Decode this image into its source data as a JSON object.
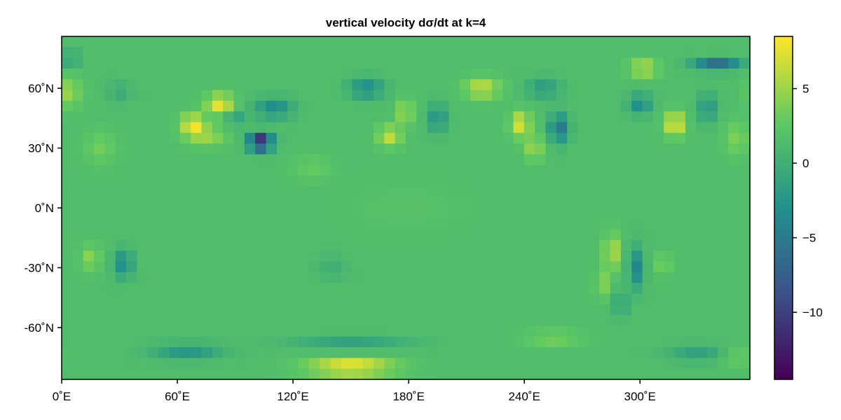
{
  "chart_data": {
    "type": "heatmap",
    "title": "vertical velocity dσ/dt at k=4",
    "xlabel": "",
    "ylabel": "",
    "x_range": [
      0,
      357
    ],
    "y_range": [
      -86,
      86
    ],
    "x_ticks": [
      {
        "value": 0,
        "label": "0˚E"
      },
      {
        "value": 60,
        "label": "60˚E"
      },
      {
        "value": 120,
        "label": "120˚E"
      },
      {
        "value": 180,
        "label": "180˚E"
      },
      {
        "value": 240,
        "label": "240˚E"
      },
      {
        "value": 300,
        "label": "300˚E"
      }
    ],
    "y_ticks": [
      {
        "value": 60,
        "label": "60˚N"
      },
      {
        "value": 30,
        "label": "30˚N"
      },
      {
        "value": 0,
        "label": "0˚N"
      },
      {
        "value": -30,
        "label": "-30˚N"
      },
      {
        "value": -60,
        "label": "-60˚N"
      }
    ],
    "colormap": "viridis",
    "colormap_stops": [
      "#440154",
      "#3b528b",
      "#21918c",
      "#5ec962",
      "#fde725"
    ],
    "colorbar": {
      "range": [
        -14.5,
        8.5
      ],
      "ticks": [
        {
          "value": 5,
          "label": "5"
        },
        {
          "value": 0,
          "label": "0"
        },
        {
          "value": -5,
          "label": "−5"
        },
        {
          "value": -10,
          "label": "−10"
        }
      ]
    },
    "grid": {
      "nlon": 64,
      "nlat": 32,
      "background_value": 1.5
    },
    "features": [
      {
        "lon": 82,
        "lat": 52,
        "wlon": 7,
        "wlat": 5,
        "amp": 6.5
      },
      {
        "lon": 68,
        "lat": 42,
        "wlon": 6,
        "wlat": 5,
        "amp": 6.5
      },
      {
        "lon": 75,
        "lat": 36,
        "wlon": 10,
        "wlat": 5,
        "amp": 3.5
      },
      {
        "lon": 103,
        "lat": 33,
        "wlon": 6,
        "wlat": 4,
        "amp": -15.5
      },
      {
        "lon": 110,
        "lat": 50,
        "wlon": 10,
        "wlat": 5,
        "amp": -5
      },
      {
        "lon": 90,
        "lat": 45,
        "wlon": 5,
        "wlat": 4,
        "amp": -3
      },
      {
        "lon": 170,
        "lat": 36,
        "wlon": 6,
        "wlat": 5,
        "amp": 5
      },
      {
        "lon": 178,
        "lat": 48,
        "wlon": 4,
        "wlat": 6,
        "amp": 4
      },
      {
        "lon": 158,
        "lat": 60,
        "wlon": 9,
        "wlat": 5,
        "amp": -5
      },
      {
        "lon": 195,
        "lat": 45,
        "wlon": 5,
        "wlat": 7,
        "amp": -4.5
      },
      {
        "lon": 218,
        "lat": 60,
        "wlon": 9,
        "wlat": 5,
        "amp": 5
      },
      {
        "lon": 238,
        "lat": 42,
        "wlon": 5,
        "wlat": 6,
        "amp": 6
      },
      {
        "lon": 245,
        "lat": 30,
        "wlon": 5,
        "wlat": 6,
        "amp": 3.5
      },
      {
        "lon": 258,
        "lat": 40,
        "wlon": 5,
        "wlat": 7,
        "amp": -7
      },
      {
        "lon": 250,
        "lat": 60,
        "wlon": 9,
        "wlat": 5,
        "amp": -3.5
      },
      {
        "lon": 302,
        "lat": 70,
        "wlon": 7,
        "wlat": 4,
        "amp": 5
      },
      {
        "lon": 318,
        "lat": 42,
        "wlon": 5,
        "wlat": 6,
        "amp": 6.5
      },
      {
        "lon": 300,
        "lat": 52,
        "wlon": 6,
        "wlat": 5,
        "amp": -5
      },
      {
        "lon": 340,
        "lat": 72,
        "wlon": 12,
        "wlat": 3,
        "amp": -8
      },
      {
        "lon": 335,
        "lat": 50,
        "wlon": 5,
        "wlat": 7,
        "amp": -4
      },
      {
        "lon": 350,
        "lat": 35,
        "wlon": 6,
        "wlat": 8,
        "amp": 2.5
      },
      {
        "lon": 3,
        "lat": 58,
        "wlon": 7,
        "wlat": 7,
        "amp": 3.5
      },
      {
        "lon": 5,
        "lat": 75,
        "wlon": 5,
        "wlat": 3,
        "amp": -4
      },
      {
        "lon": 30,
        "lat": 58,
        "wlon": 6,
        "wlat": 5,
        "amp": -2
      },
      {
        "lon": 285,
        "lat": -22,
        "wlon": 3,
        "wlat": 9,
        "amp": 6.5
      },
      {
        "lon": 280,
        "lat": -38,
        "wlon": 3,
        "wlat": 7,
        "amp": 3.5
      },
      {
        "lon": 298,
        "lat": -30,
        "wlon": 4,
        "wlat": 10,
        "amp": -5.5
      },
      {
        "lon": 290,
        "lat": -48,
        "wlon": 4,
        "wlat": 6,
        "amp": -3
      },
      {
        "lon": 312,
        "lat": -28,
        "wlon": 4,
        "wlat": 5,
        "amp": 2.5
      },
      {
        "lon": 32,
        "lat": -28,
        "wlon": 5,
        "wlat": 7,
        "amp": -5
      },
      {
        "lon": 15,
        "lat": -25,
        "wlon": 5,
        "wlat": 6,
        "amp": 3
      },
      {
        "lon": 150,
        "lat": -80,
        "wlon": 22,
        "wlat": 4,
        "amp": 7.5
      },
      {
        "lon": 65,
        "lat": -72,
        "wlon": 18,
        "wlat": 4,
        "amp": -4
      },
      {
        "lon": 150,
        "lat": -68,
        "wlon": 30,
        "wlat": 3,
        "amp": -3
      },
      {
        "lon": 255,
        "lat": -65,
        "wlon": 15,
        "wlat": 3,
        "amp": 3
      },
      {
        "lon": 330,
        "lat": -73,
        "wlon": 15,
        "wlat": 4,
        "amp": -3
      },
      {
        "lon": 350,
        "lat": -75,
        "wlon": 8,
        "wlat": 3,
        "amp": 3
      },
      {
        "lon": 180,
        "lat": 0,
        "wlon": 30,
        "wlat": 12,
        "amp": 0.5
      },
      {
        "lon": 130,
        "lat": 20,
        "wlon": 10,
        "wlat": 6,
        "amp": 1.5
      },
      {
        "lon": 20,
        "lat": 30,
        "wlon": 8,
        "wlat": 8,
        "amp": 2
      },
      {
        "lon": 140,
        "lat": -30,
        "wlon": 8,
        "wlat": 6,
        "amp": -1.5
      }
    ]
  }
}
